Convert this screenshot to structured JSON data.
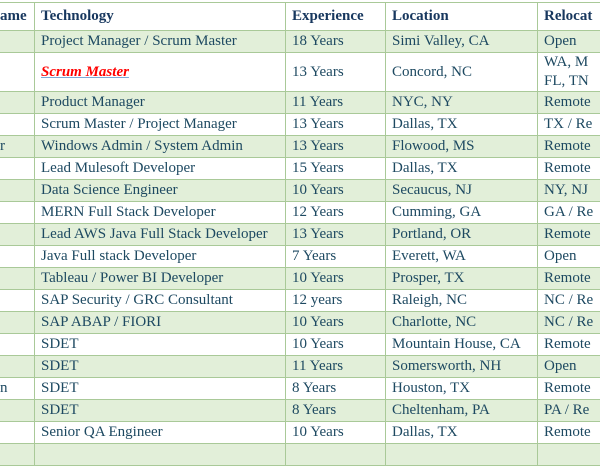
{
  "colors": {
    "row_alt_green": "#e2efd9",
    "grid_border_green": "#a9c998",
    "body_text_navy": "#1d4961",
    "header_text_navy": "#17375e",
    "link_red": "#ff0000",
    "link_underline_blue": "#7da9d8"
  },
  "table": {
    "columns": [
      {
        "key": "name",
        "label": "ame"
      },
      {
        "key": "technology",
        "label": "Technology"
      },
      {
        "key": "experience",
        "label": "Experience"
      },
      {
        "key": "location",
        "label": "Location"
      },
      {
        "key": "relocation",
        "label": "Relocat"
      }
    ],
    "rows": [
      {
        "name": "",
        "technology": "Project Manager / Scrum Master",
        "experience": "18 Years",
        "location": "Simi Valley, CA",
        "relocation": "Open",
        "relocation2": "",
        "shade": "green",
        "technology_style": ""
      },
      {
        "name": "",
        "technology": "Scrum Master",
        "experience": "13 Years",
        "location": "Concord, NC",
        "relocation": "WA, M",
        "relocation2": "FL, TN",
        "shade": "white",
        "technology_style": "red-link"
      },
      {
        "name": "",
        "technology": "Product Manager",
        "experience": "11 Years",
        "location": "NYC, NY",
        "relocation": "Remote",
        "relocation2": "",
        "shade": "green",
        "technology_style": ""
      },
      {
        "name": "",
        "technology": "Scrum Master / Project Manager",
        "experience": "13 Years",
        "location": "Dallas, TX",
        "relocation": "TX / Re",
        "relocation2": "",
        "shade": "white",
        "technology_style": ""
      },
      {
        "name": "r",
        "technology": "Windows Admin / System Admin",
        "experience": "13 Years",
        "location": "Flowood, MS",
        "relocation": "Remote",
        "relocation2": "",
        "shade": "green",
        "technology_style": ""
      },
      {
        "name": "",
        "technology": "Lead Mulesoft Developer",
        "experience": "15 Years",
        "location": "Dallas, TX",
        "relocation": "Remote",
        "relocation2": "",
        "shade": "white",
        "technology_style": ""
      },
      {
        "name": "",
        "technology": "Data Science Engineer",
        "experience": "10 Years",
        "location": "Secaucus, NJ",
        "relocation": "NY, NJ",
        "relocation2": "",
        "shade": "green",
        "technology_style": ""
      },
      {
        "name": "",
        "technology": "MERN Full Stack Developer",
        "experience": "12 Years",
        "location": "Cumming, GA",
        "relocation": "GA / Re",
        "relocation2": "",
        "shade": "white",
        "technology_style": ""
      },
      {
        "name": "",
        "technology": "Lead AWS Java Full Stack Developer",
        "experience": "13 Years",
        "location": "Portland, OR",
        "relocation": "Remote",
        "relocation2": "",
        "shade": "green",
        "technology_style": ""
      },
      {
        "name": "",
        "technology": "Java Full stack Developer",
        "experience": "7 Years",
        "location": "Everett, WA",
        "relocation": "Open",
        "relocation2": "",
        "shade": "white",
        "technology_style": ""
      },
      {
        "name": "",
        "technology": "Tableau / Power BI Developer",
        "experience": "10 Years",
        "location": "Prosper, TX",
        "relocation": "Remote",
        "relocation2": "",
        "shade": "green",
        "technology_style": ""
      },
      {
        "name": "",
        "technology": "SAP Security / GRC Consultant",
        "experience": "12 years",
        "location": "Raleigh, NC",
        "relocation": "NC / Re",
        "relocation2": "",
        "shade": "white",
        "technology_style": ""
      },
      {
        "name": "",
        "technology": "SAP ABAP / FIORI",
        "experience": "10 Years",
        "location": "Charlotte, NC",
        "relocation": "NC / Re",
        "relocation2": "",
        "shade": "green",
        "technology_style": ""
      },
      {
        "name": "",
        "technology": "SDET",
        "experience": "10 Years",
        "location": "Mountain House, CA",
        "relocation": "Remote",
        "relocation2": "",
        "shade": "white",
        "technology_style": ""
      },
      {
        "name": "",
        "technology": "SDET",
        "experience": "11 Years",
        "location": "Somersworth, NH",
        "relocation": "Open",
        "relocation2": "",
        "shade": "green",
        "technology_style": ""
      },
      {
        "name": "n",
        "technology": "SDET",
        "experience": "8 Years",
        "location": "Houston, TX",
        "relocation": "Remote",
        "relocation2": "",
        "shade": "white",
        "technology_style": ""
      },
      {
        "name": "",
        "technology": "SDET",
        "experience": "8 Years",
        "location": "Cheltenham, PA",
        "relocation": "PA / Re",
        "relocation2": "",
        "shade": "green",
        "technology_style": ""
      },
      {
        "name": "",
        "technology": "Senior QA Engineer",
        "experience": "10 Years",
        "location": "Dallas, TX",
        "relocation": "Remote",
        "relocation2": "",
        "shade": "white",
        "technology_style": ""
      },
      {
        "name": "",
        "technology": "",
        "experience": "",
        "location": "",
        "relocation": "",
        "relocation2": "",
        "shade": "green",
        "technology_style": ""
      }
    ]
  }
}
